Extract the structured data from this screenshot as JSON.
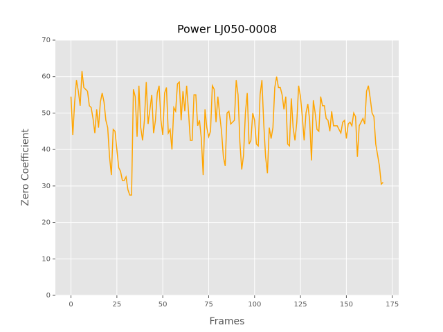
{
  "chart_data": {
    "type": "line",
    "title": "Power LJ050-0008",
    "xlabel": "Frames",
    "ylabel": "Zero Coefficient",
    "x": [
      0,
      1,
      2,
      3,
      4,
      5,
      6,
      7,
      8,
      9,
      10,
      11,
      12,
      13,
      14,
      15,
      16,
      17,
      18,
      19,
      20,
      21,
      22,
      23,
      24,
      25,
      26,
      27,
      28,
      29,
      30,
      31,
      32,
      33,
      34,
      35,
      36,
      37,
      38,
      39,
      40,
      41,
      42,
      43,
      44,
      45,
      46,
      47,
      48,
      49,
      50,
      51,
      52,
      53,
      54,
      55,
      56,
      57,
      58,
      59,
      60,
      61,
      62,
      63,
      64,
      65,
      66,
      67,
      68,
      69,
      70,
      71,
      72,
      73,
      74,
      75,
      76,
      77,
      78,
      79,
      80,
      81,
      82,
      83,
      84,
      85,
      86,
      87,
      88,
      89,
      90,
      91,
      92,
      93,
      94,
      95,
      96,
      97,
      98,
      99,
      100,
      101,
      102,
      103,
      104,
      105,
      106,
      107,
      108,
      109,
      110,
      111,
      112,
      113,
      114,
      115,
      116,
      117,
      118,
      119,
      120,
      121,
      122,
      123,
      124,
      125,
      126,
      127,
      128,
      129,
      130,
      131,
      132,
      133,
      134,
      135,
      136,
      137,
      138,
      139,
      140,
      141,
      142,
      143,
      144,
      145,
      146,
      147,
      148,
      149,
      150,
      151,
      152,
      153,
      154,
      155,
      156,
      157,
      158,
      159,
      160,
      161,
      162,
      163,
      164,
      165,
      166,
      167,
      168,
      169,
      170
    ],
    "series": [
      {
        "name": "Power LJ050-0008",
        "color": "#ffa500",
        "values": [
          54.5,
          44,
          53,
          59,
          56,
          52,
          61.5,
          57,
          56.5,
          56,
          52,
          51.5,
          48.5,
          44.5,
          51,
          46,
          53,
          55.5,
          53,
          48,
          46,
          38,
          33,
          45.5,
          45,
          40,
          35,
          34,
          31.5,
          31.5,
          32.5,
          29,
          27.5,
          27.5,
          56.5,
          54.5,
          43.5,
          57.5,
          46,
          42.5,
          48,
          58.5,
          47,
          51,
          55,
          44.5,
          48,
          55.5,
          57.5,
          48,
          44,
          55.5,
          57,
          44.5,
          45.5,
          40,
          51.5,
          50.5,
          58,
          58.5,
          48,
          56,
          50.5,
          57.5,
          50.5,
          42.5,
          42.5,
          55,
          55,
          46.5,
          48,
          43,
          33,
          51,
          46,
          43.5,
          45,
          57.5,
          56.5,
          47.5,
          54.5,
          49.5,
          45,
          38,
          35.5,
          50,
          50.5,
          47,
          47.5,
          48,
          59,
          55,
          42,
          34.5,
          38.5,
          50,
          55.5,
          41.5,
          42.5,
          50,
          48,
          41.5,
          41,
          55,
          59,
          47,
          38,
          33.5,
          46,
          43,
          46,
          57,
          60,
          57,
          57,
          55,
          51,
          54.5,
          41.5,
          41,
          54,
          46,
          42.5,
          47.5,
          57.5,
          54.5,
          49,
          42.5,
          50,
          52.5,
          48,
          37,
          53.5,
          50,
          45.5,
          45,
          54.5,
          52,
          52,
          48.5,
          48,
          45,
          50.5,
          46.5,
          46.5,
          46.5,
          45.5,
          44.5,
          47.5,
          48,
          43,
          47,
          47.5,
          46.5,
          50,
          49,
          38,
          46.5,
          47.5,
          48.5,
          47,
          56,
          57.5,
          54,
          50,
          49,
          41.5,
          38.5,
          35.5,
          30.5,
          31
        ]
      }
    ],
    "xlim": [
      -8.5,
      178.5
    ],
    "ylim": [
      0,
      70
    ],
    "xticks": [
      0,
      25,
      50,
      75,
      100,
      125,
      150,
      175
    ],
    "yticks": [
      0,
      10,
      20,
      30,
      40,
      50,
      60,
      70
    ],
    "grid": true
  }
}
